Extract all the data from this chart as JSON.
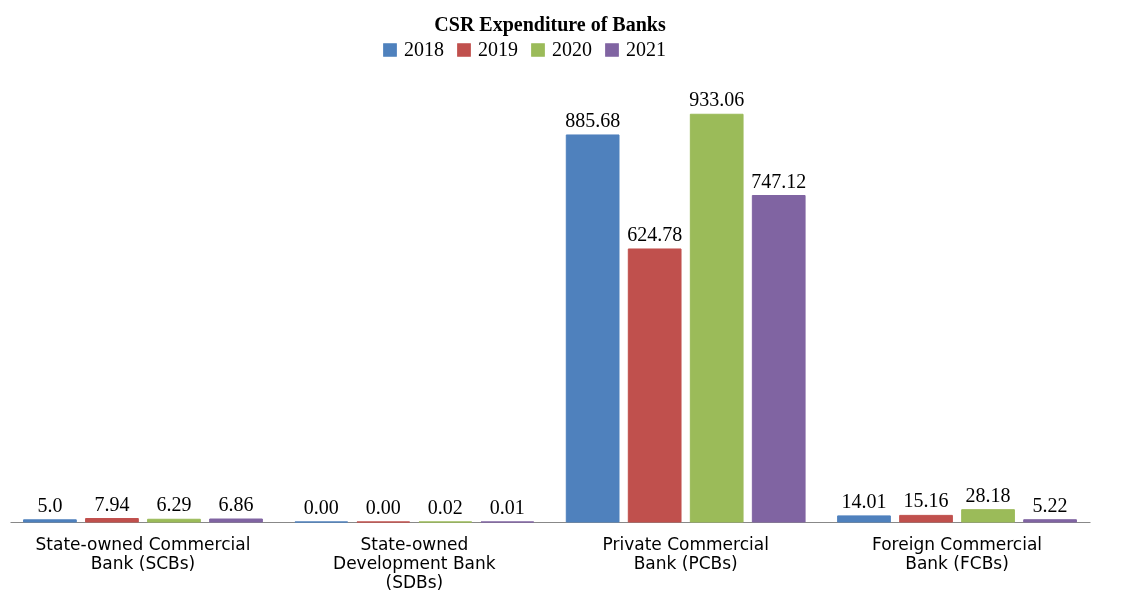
{
  "chart_data": {
    "type": "bar",
    "title": "CSR Expenditure of Banks",
    "categories": [
      "State-owned Commercial Bank (SCBs)",
      "State-owned Development Bank (SDBs)",
      "Private Commercial Bank (PCBs)",
      "Foreign Commercial Bank (FCBs)"
    ],
    "series": [
      {
        "name": "2018",
        "color": "#4f81bd",
        "values": [
          5.0,
          0.0,
          885.68,
          14.01
        ],
        "value_labels": [
          "5.0",
          "0.00",
          "885.68",
          "14.01"
        ]
      },
      {
        "name": "2019",
        "color": "#c0504d",
        "values": [
          7.94,
          0.0,
          624.78,
          15.16
        ],
        "value_labels": [
          "7.94",
          "0.00",
          "624.78",
          "15.16"
        ]
      },
      {
        "name": "2020",
        "color": "#9bbb59",
        "values": [
          6.29,
          0.02,
          933.06,
          28.18
        ],
        "value_labels": [
          "6.29",
          "0.02",
          "933.06",
          "28.18"
        ]
      },
      {
        "name": "2021",
        "color": "#8064a2",
        "values": [
          6.86,
          0.01,
          747.12,
          5.22
        ],
        "value_labels": [
          "6.86",
          "0.01",
          "747.12",
          "5.22"
        ]
      }
    ],
    "legend": "top"
  }
}
